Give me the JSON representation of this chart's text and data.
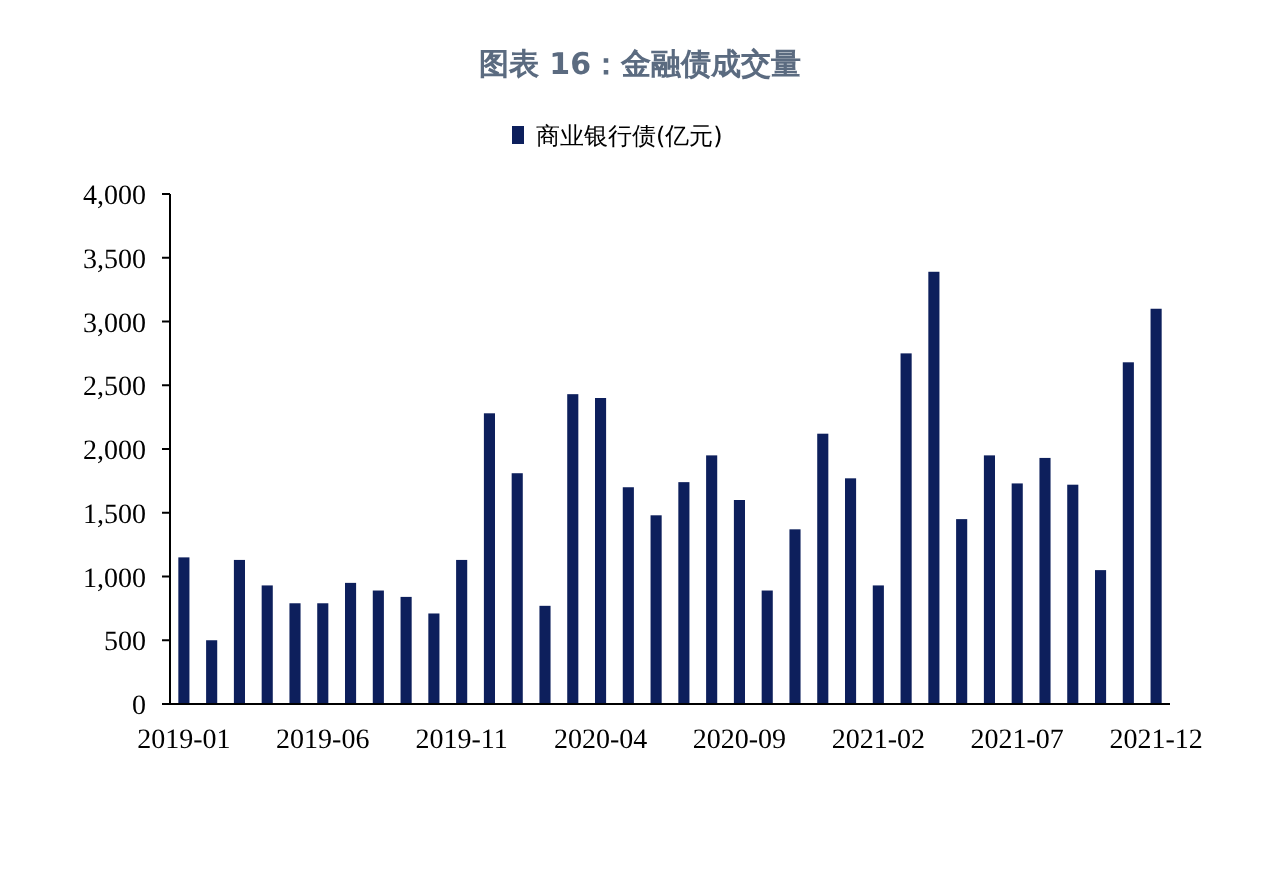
{
  "chart_data": {
    "type": "bar",
    "title": "图表 16：金融债成交量",
    "categories": [
      "2019-01",
      null,
      null,
      null,
      null,
      "2019-06",
      null,
      null,
      null,
      null,
      "2019-11",
      null,
      null,
      null,
      null,
      "2020-04",
      null,
      null,
      null,
      null,
      "2020-09",
      null,
      null,
      null,
      null,
      "2021-02",
      null,
      null,
      null,
      null,
      "2021-07",
      null,
      null,
      null,
      null,
      "2021-12"
    ],
    "series": [
      {
        "name": "商业银行债(亿元)",
        "color": "#0d1f5c",
        "values": [
          1150,
          500,
          1130,
          930,
          790,
          790,
          950,
          890,
          840,
          710,
          1130,
          2280,
          1810,
          770,
          2430,
          2400,
          1700,
          1480,
          1740,
          1950,
          1600,
          890,
          1370,
          2120,
          1770,
          930,
          2750,
          3390,
          1450,
          1950,
          1730,
          1930,
          1720,
          1050,
          2680,
          3100
        ]
      }
    ],
    "ylim": [
      0,
      4000
    ],
    "yticks": [
      0,
      {
        "value": 500,
        "label": "500"
      },
      {
        "value": 1000,
        "label": "1,000"
      },
      {
        "value": 1500,
        "label": "1,500"
      },
      {
        "value": 2000,
        "label": "2,000"
      },
      {
        "value": 2500,
        "label": "2,500"
      },
      {
        "value": 3000,
        "label": "3,000"
      },
      {
        "value": 3500,
        "label": "3,500"
      },
      {
        "value": 4000,
        "label": "4,000"
      }
    ],
    "grid": false,
    "legend": "top"
  }
}
